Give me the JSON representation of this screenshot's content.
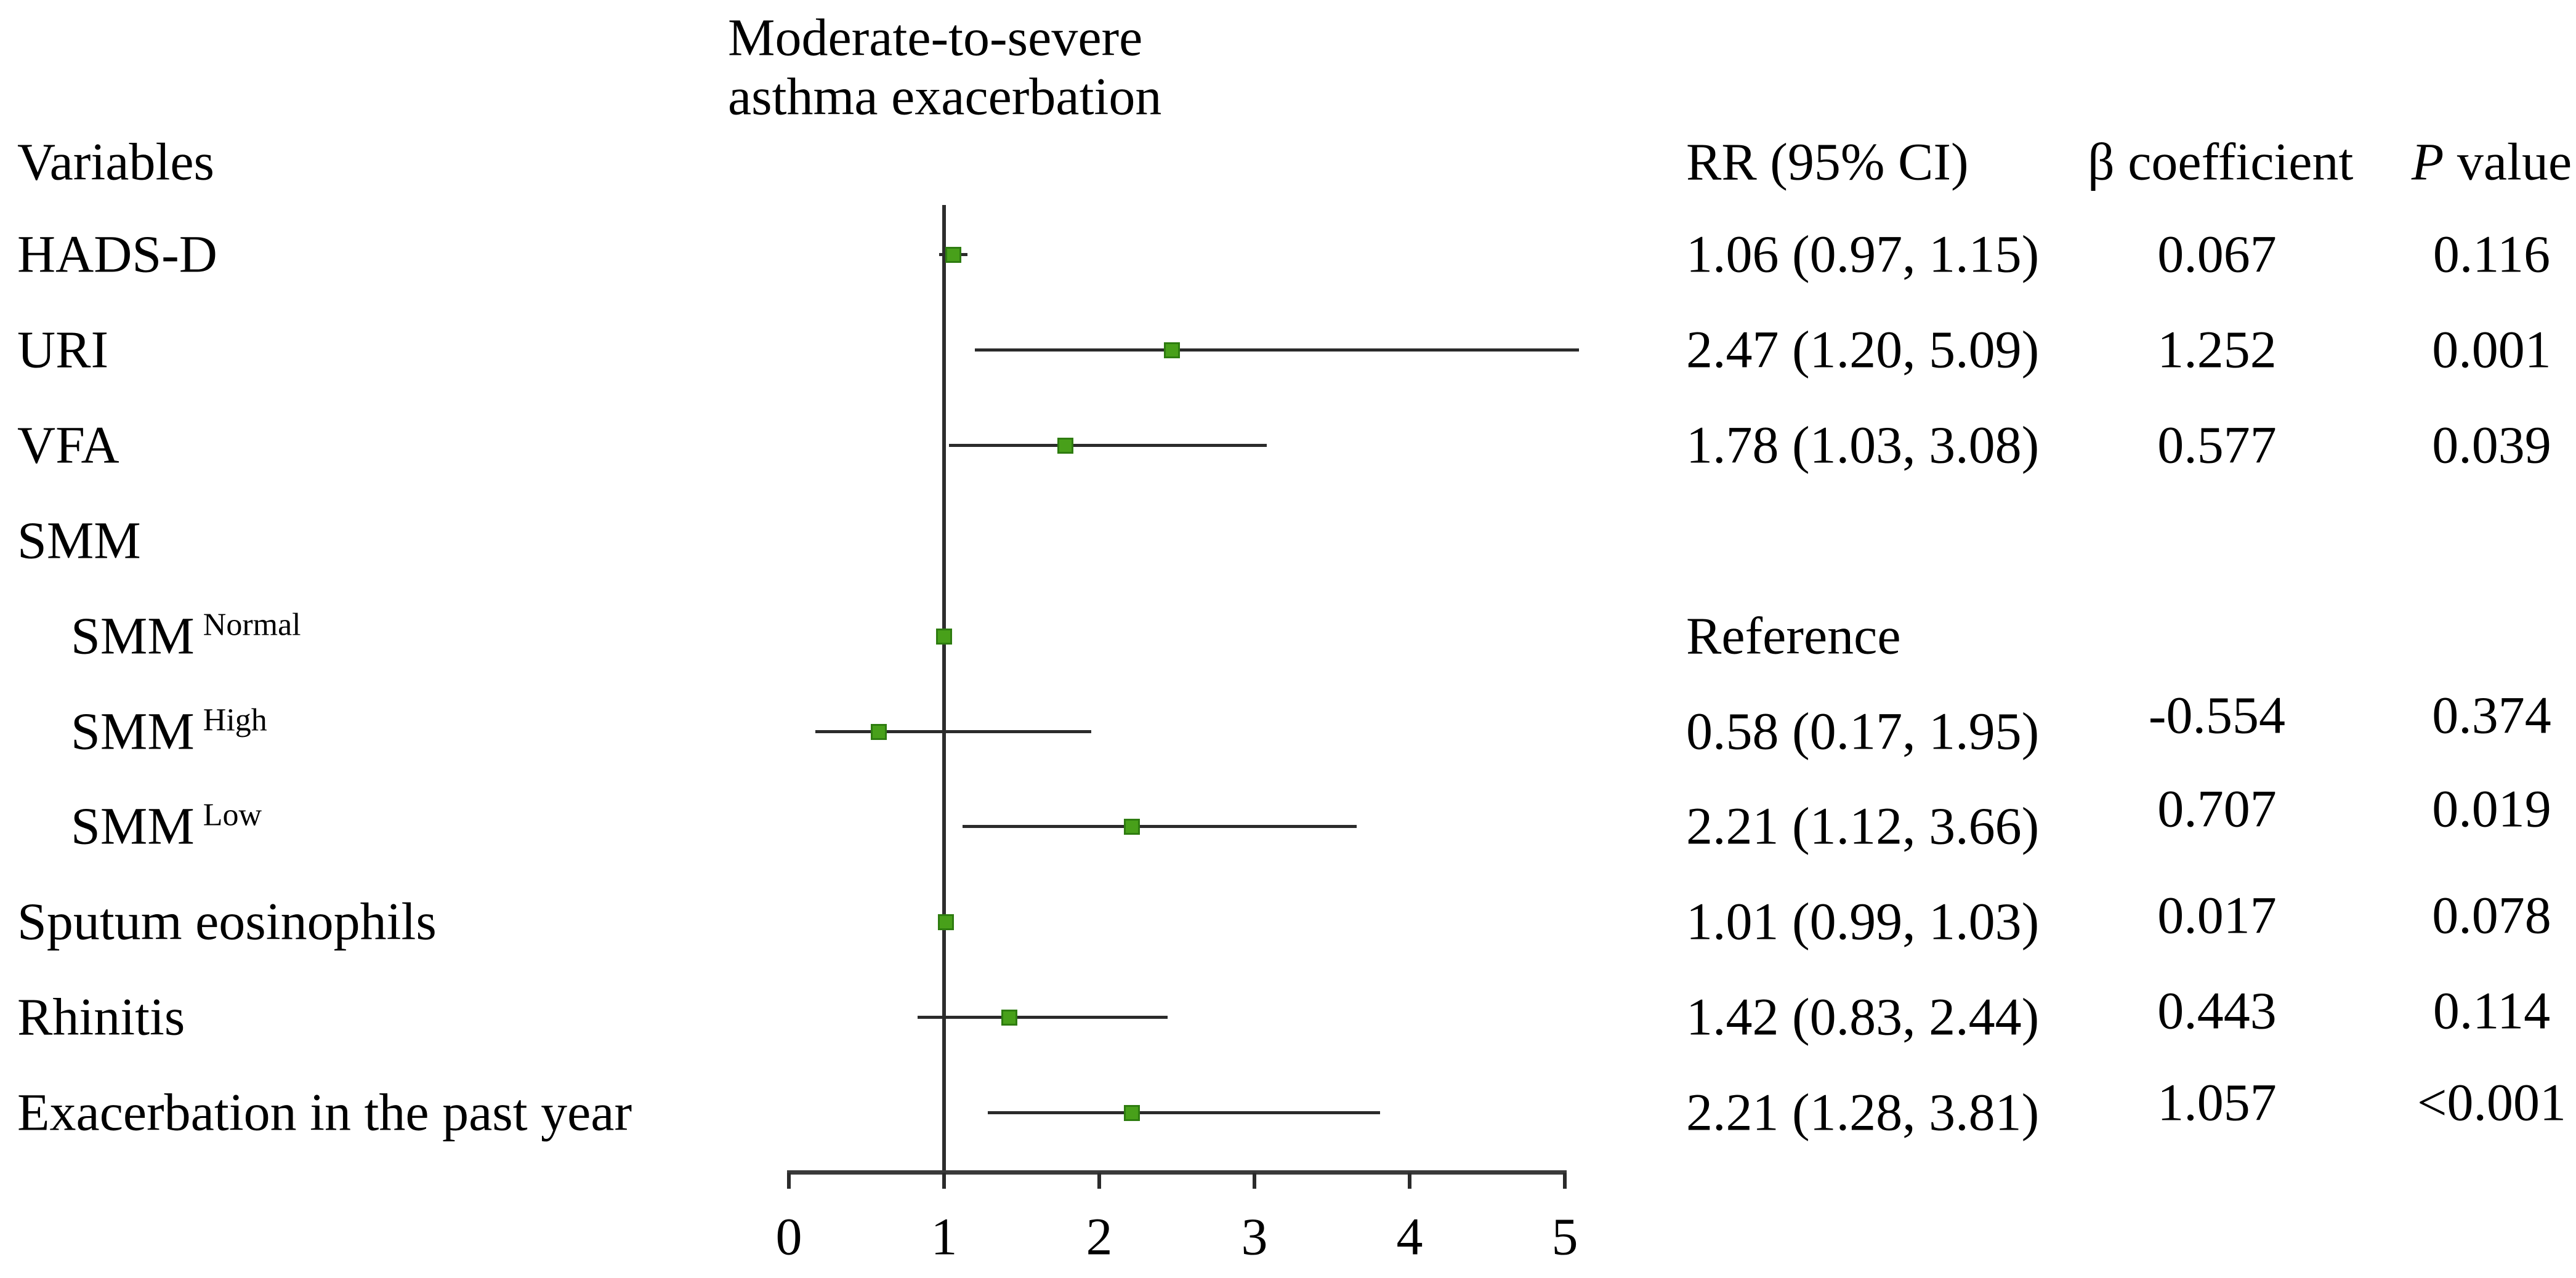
{
  "figure_title": {
    "line1": "Moderate-to-severe",
    "line2": "asthma exacerbation"
  },
  "headers": {
    "variables": "Variables",
    "rr": "RR (95% CI)",
    "beta": "β coefficient",
    "p_italic": "P",
    "p_rest": " value"
  },
  "axis": {
    "tick_labels": [
      "0",
      "1",
      "2",
      "3",
      "4",
      "5"
    ]
  },
  "chart_data": {
    "type": "forest",
    "title": "Moderate-to-severe asthma exacerbation",
    "xlabel": "",
    "x_range": [
      0,
      5
    ],
    "x_ticks": [
      0,
      1,
      2,
      3,
      4,
      5
    ],
    "reference_line_x": 1,
    "marker_color": "#48a01a",
    "marker_border_color": "#2e7c10",
    "ci_line_color": "#2b2b2b",
    "columns": [
      "Variables",
      "RR (95% CI)",
      "β coefficient",
      "P value"
    ],
    "rows": [
      {
        "label": "HADS-D",
        "rr": 1.06,
        "ci_low": 0.97,
        "ci_high": 1.15,
        "rr_ci_text": "1.06 (0.97, 1.15)",
        "beta": "0.067",
        "p": "0.116"
      },
      {
        "label": "URI",
        "rr": 2.47,
        "ci_low": 1.2,
        "ci_high": 5.09,
        "rr_ci_text": "2.47 (1.20, 5.09)",
        "beta": "1.252",
        "p": "0.001"
      },
      {
        "label": "VFA",
        "rr": 1.78,
        "ci_low": 1.03,
        "ci_high": 3.08,
        "rr_ci_text": "1.78 (1.03, 3.08)",
        "beta": "0.577",
        "p": "0.039"
      },
      {
        "label": "SMM",
        "group_header": true
      },
      {
        "label": "SMM",
        "sup": "Normal",
        "indent": true,
        "rr": 1.0,
        "rr_ci_text": "Reference"
      },
      {
        "label": "SMM",
        "sup": "High",
        "indent": true,
        "rr": 0.58,
        "ci_low": 0.17,
        "ci_high": 1.95,
        "rr_ci_text": "0.58 (0.17, 1.95)",
        "beta": "-0.554",
        "p": "0.374"
      },
      {
        "label": "SMM",
        "sup": "Low",
        "indent": true,
        "rr": 2.21,
        "ci_low": 1.12,
        "ci_high": 3.66,
        "rr_ci_text": "2.21 (1.12, 3.66)",
        "beta": "0.707",
        "p": "0.019"
      },
      {
        "label": "Sputum eosinophils",
        "rr": 1.01,
        "ci_low": 0.99,
        "ci_high": 1.03,
        "rr_ci_text": "1.01 (0.99, 1.03)",
        "beta": "0.017",
        "p": "0.078"
      },
      {
        "label": "Rhinitis",
        "rr": 1.42,
        "ci_low": 0.83,
        "ci_high": 2.44,
        "rr_ci_text": "1.42 (0.83, 2.44)",
        "beta": "0.443",
        "p": "0.114"
      },
      {
        "label": "Exacerbation in the past year",
        "rr": 2.21,
        "ci_low": 1.28,
        "ci_high": 3.81,
        "rr_ci_text": "2.21 (1.28, 3.81)",
        "beta": "1.057",
        "p": "<0.001"
      }
    ]
  }
}
